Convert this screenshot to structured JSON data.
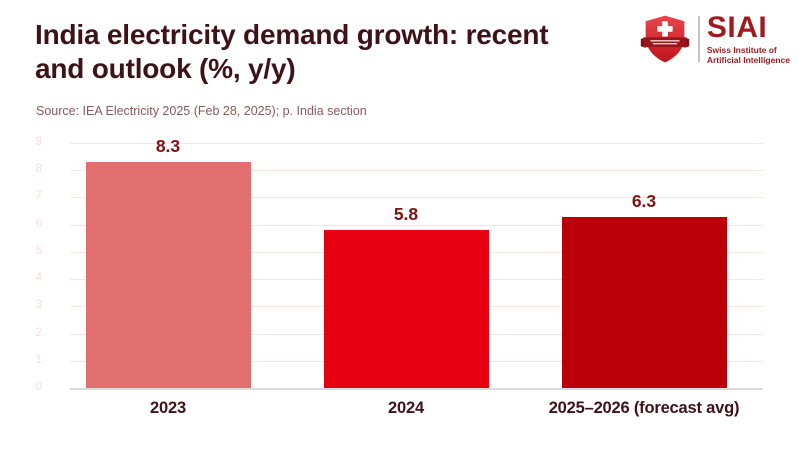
{
  "header": {
    "title": "India electricity demand growth: recent and outlook (%, y/y)",
    "source": "Source: IEA Electricity 2025 (Feb 28, 2025); p. India section"
  },
  "logo": {
    "acronym": "SIAI",
    "name_line1": "Swiss Institute of",
    "name_line2": "Artificial Intelligence",
    "shield_icon": "swiss-shield-icon",
    "colors": {
      "shield_red_top": "#E8474C",
      "shield_red_bottom": "#C3121C",
      "banner_dark_red": "#9A1419",
      "cross_white": "#FFFFFF",
      "text_red": "#9E1C20",
      "divider_gray": "#C9C2C2"
    }
  },
  "chart_data": {
    "type": "bar",
    "title": "India electricity demand growth: recent and outlook (%, y/y)",
    "subtitle": "Source: IEA Electricity 2025 (Feb 28, 2025); p. India section",
    "categories": [
      "2023",
      "2024",
      "2025–2026 (forecast avg)"
    ],
    "values": [
      8.3,
      5.8,
      6.3
    ],
    "value_labels": [
      "8.3",
      "5.8",
      "6.3"
    ],
    "bar_colors": [
      "#E26F6F",
      "#E60012",
      "#BB0009"
    ],
    "xlabel": "",
    "ylabel": "",
    "ylim": [
      0,
      9
    ],
    "yticks": [
      0,
      1,
      2,
      3,
      4,
      5,
      6,
      7,
      8,
      9
    ],
    "grid": true,
    "legend": "none",
    "gridline_color": "#FAE3E3",
    "axis_line_color": "#DBDBDB",
    "ytick_label_color": "#FADCDC",
    "value_label_color": "#811114",
    "xtick_label_color": "#3E1218"
  }
}
